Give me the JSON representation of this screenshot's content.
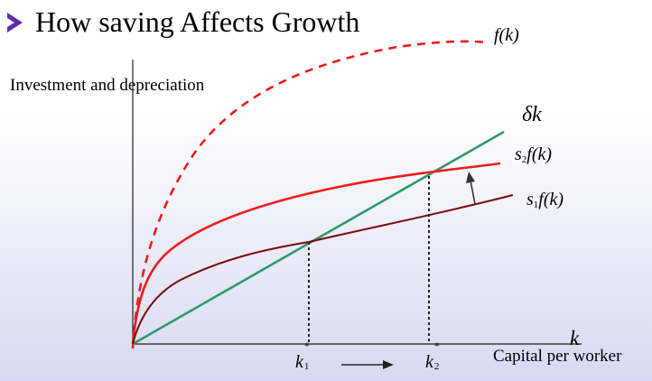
{
  "slide": {
    "title": "How saving Affects Growth"
  },
  "axes": {
    "y_label": "Investment and depreciation",
    "x_label": "Capital per worker",
    "x_symbol": "k"
  },
  "curves": {
    "f_k": "f(k)",
    "delta_k": "δk",
    "s2_s": "s",
    "s2_sub": "2",
    "s2_fk": "f(k)",
    "s1_s": "s",
    "s1_sub": "1",
    "s1_fk": "f(k)"
  },
  "steady_states": {
    "k1_base": "k",
    "k1_sup": "*",
    "k1_sub": "1",
    "k2_base": "k",
    "k2_sup": "*",
    "k2_sub": "2"
  },
  "colors": {
    "production": "#ee1c1c",
    "saving_high": "#ee1c1c",
    "saving_low": "#7a0a0a",
    "depreciation": "#2e9a6a",
    "axis": "#222222",
    "title_bullet": "#5a2ca8"
  }
}
